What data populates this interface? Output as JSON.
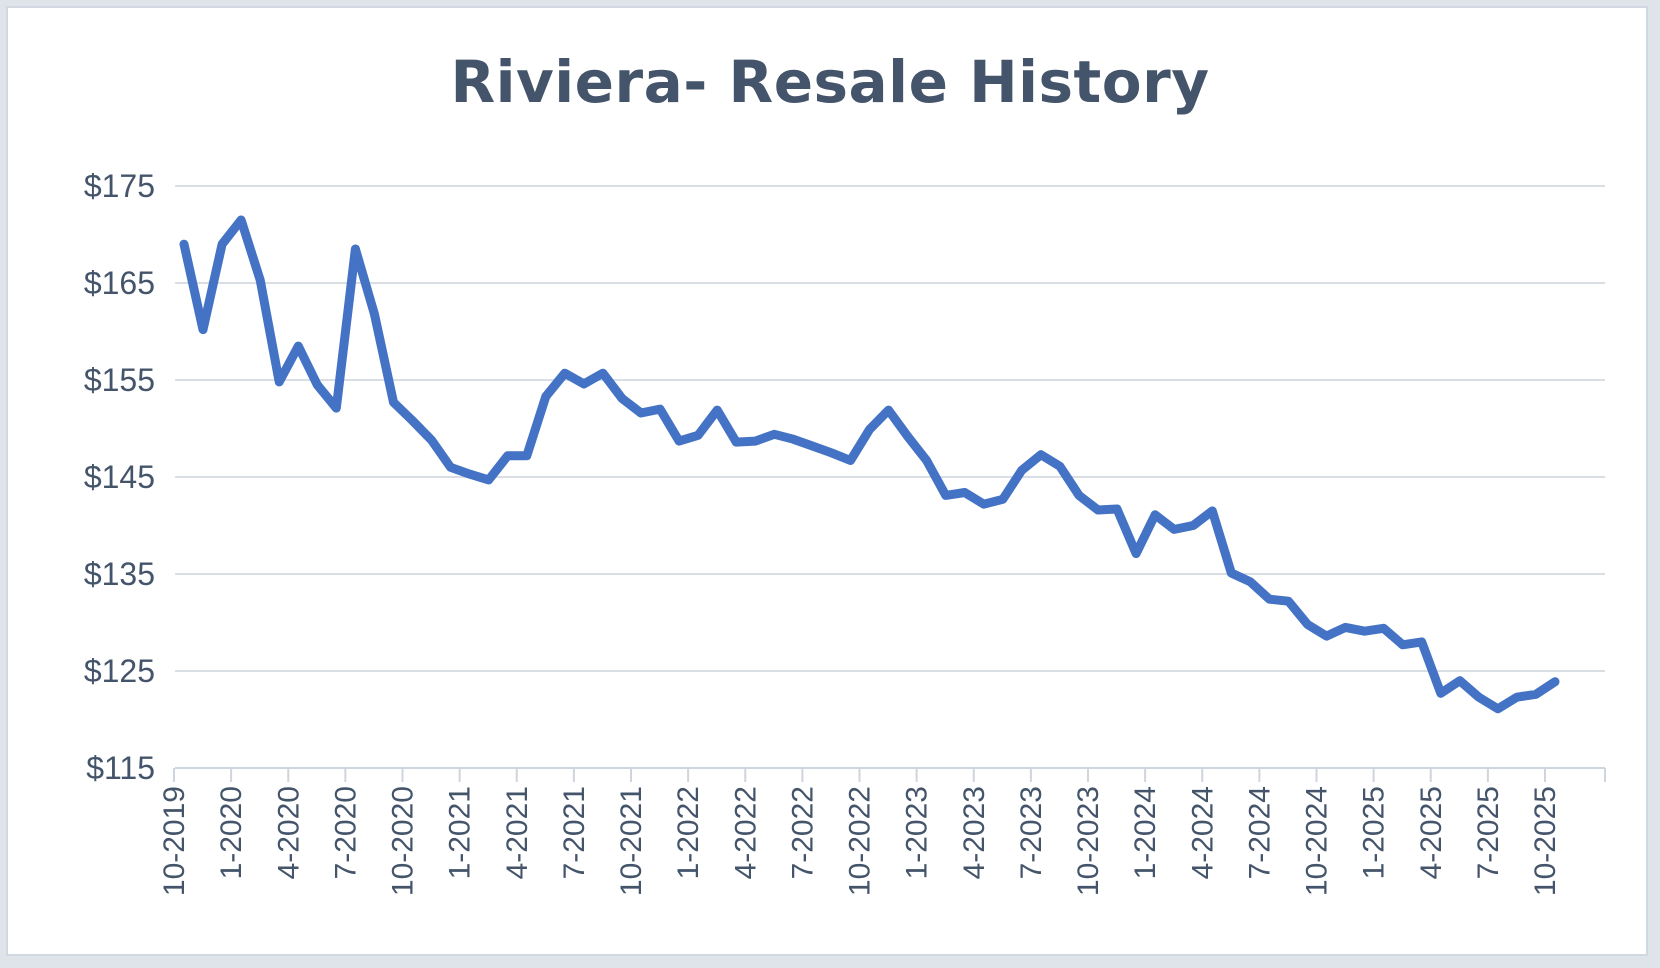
{
  "chart_data": {
    "type": "line",
    "title": "Riviera- Resale History",
    "xlabel": "",
    "ylabel": "",
    "ylim": [
      115,
      175
    ],
    "yticks": [
      "$115",
      "$125",
      "$135",
      "$145",
      "$155",
      "$165",
      "$175"
    ],
    "ytick_values": [
      115,
      125,
      135,
      145,
      155,
      165,
      175
    ],
    "grid": true,
    "legend": "none",
    "line_color": "#4472c4",
    "x": [
      "10-2019",
      "11-2019",
      "12-2019",
      "1-2020",
      "2-2020",
      "3-2020",
      "4-2020",
      "5-2020",
      "6-2020",
      "7-2020",
      "8-2020",
      "9-2020",
      "10-2020",
      "11-2020",
      "12-2020",
      "1-2021",
      "2-2021",
      "3-2021",
      "4-2021",
      "5-2021",
      "6-2021",
      "7-2021",
      "8-2021",
      "9-2021",
      "10-2021",
      "11-2021",
      "12-2021",
      "1-2022",
      "2-2022",
      "3-2022",
      "4-2022",
      "5-2022",
      "6-2022",
      "7-2022",
      "8-2022",
      "9-2022",
      "10-2022",
      "11-2022",
      "12-2022",
      "1-2023",
      "2-2023",
      "3-2023",
      "4-2023",
      "5-2023",
      "6-2023",
      "7-2023",
      "8-2023",
      "9-2023",
      "10-2023",
      "11-2023",
      "12-2023",
      "1-2024",
      "2-2024",
      "3-2024",
      "4-2024",
      "5-2024",
      "6-2024",
      "7-2024",
      "8-2024",
      "9-2024",
      "10-2024",
      "11-2024",
      "12-2024",
      "1-2025",
      "2-2025",
      "3-2025",
      "4-2025",
      "5-2025",
      "6-2025",
      "7-2025",
      "8-2025",
      "9-2025",
      "10-2025"
    ],
    "xticks": [
      "10-2019",
      "1-2020",
      "4-2020",
      "7-2020",
      "10-2020",
      "1-2021",
      "4-2021",
      "7-2021",
      "10-2021",
      "1-2022",
      "4-2022",
      "7-2022",
      "10-2022",
      "1-2023",
      "4-2023",
      "7-2023",
      "10-2023",
      "1-2024",
      "4-2024",
      "7-2024",
      "10-2024",
      "1-2025",
      "4-2025",
      "7-2025",
      "10-2025"
    ],
    "series": [
      {
        "values": [
          169,
          160.2,
          169,
          171.5,
          165.3,
          154.8,
          158.5,
          154.5,
          152.1,
          168.5,
          161.8,
          152.7,
          150.8,
          148.8,
          146,
          145.3,
          144.7,
          147.2,
          147.2,
          153.3,
          155.7,
          154.6,
          155.7,
          153.1,
          151.6,
          152,
          148.7,
          149.3,
          151.9,
          148.6,
          148.7,
          149.4,
          148.9,
          148.2,
          147.5,
          146.7,
          149.9,
          151.9,
          149.2,
          146.7,
          143.1,
          143.4,
          142.2,
          142.7,
          145.7,
          147.3,
          146.1,
          143.1,
          141.6,
          141.7,
          137.1,
          141.1,
          139.6,
          140,
          141.5,
          135.1,
          134.2,
          132.4,
          132.2,
          129.8,
          128.6,
          129.5,
          129.1,
          129.4,
          127.7,
          128,
          122.7,
          124,
          122.3,
          121.1,
          122.3,
          122.6,
          123.9
        ]
      }
    ]
  }
}
